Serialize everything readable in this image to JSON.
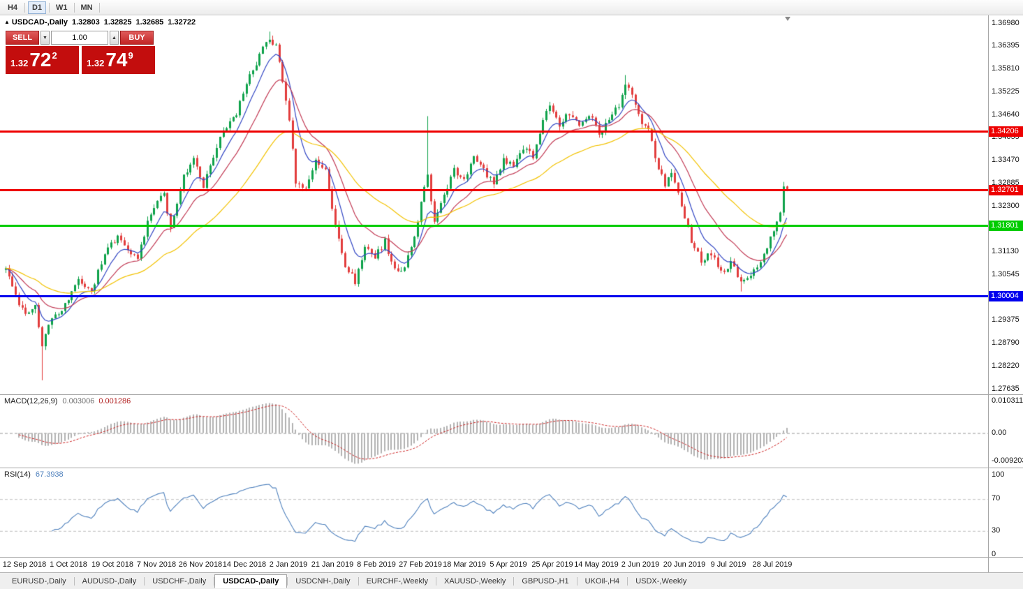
{
  "toolbar": {
    "timeframes": [
      {
        "label": "H4",
        "active": false
      },
      {
        "label": "D1",
        "active": true
      },
      {
        "label": "W1",
        "active": false
      },
      {
        "label": "MN",
        "active": false
      }
    ]
  },
  "chart": {
    "title": {
      "arrow": "▲",
      "symbol": "USDCAD-,Daily",
      "open": "1.32803",
      "high": "1.32825",
      "low": "1.32685",
      "close": "1.32722"
    },
    "trade_panel": {
      "sell_label": "SELL",
      "buy_label": "BUY",
      "volume": "1.00",
      "volume_down_icon": "▼",
      "volume_up_icon": "▲",
      "sell_price": {
        "prefix": "1.32",
        "big": "72",
        "sup": "2"
      },
      "buy_price": {
        "prefix": "1.32",
        "big": "74",
        "sup": "9"
      }
    },
    "hlines": [
      {
        "label": "1.34206",
        "price": 1.34206,
        "color": "#ee0000",
        "thickness": 3
      },
      {
        "label": "1.32701",
        "price": 1.32701,
        "color": "#ee0000",
        "thickness": 3
      },
      {
        "label": "1.31801",
        "price": 1.31801,
        "color": "#00cc00",
        "thickness": 3
      },
      {
        "label": "1.30004",
        "price": 1.30004,
        "color": "#0000ee",
        "thickness": 3
      }
    ],
    "y_axis_ticks": [
      "1.36980",
      "1.36395",
      "1.35810",
      "1.35225",
      "1.34640",
      "1.34055",
      "1.33470",
      "1.32885",
      "1.32300",
      "1.31715",
      "1.31130",
      "1.30545",
      "1.29960",
      "1.29375",
      "1.28790",
      "1.28220",
      "1.27635"
    ],
    "x_axis_dates": [
      "12 Sep 2018",
      "1 Oct 2018",
      "19 Oct 2018",
      "7 Nov 2018",
      "26 Nov 2018",
      "14 Dec 2018",
      "2 Jan 2019",
      "21 Jan 2019",
      "8 Feb 2019",
      "27 Feb 2019",
      "18 Mar 2019",
      "5 Apr 2019",
      "25 Apr 2019",
      "14 May 2019",
      "2 Jun 2019",
      "20 Jun 2019",
      "9 Jul 2019",
      "28 Jul 2019"
    ],
    "colors": {
      "up": "#0fa24b",
      "down": "#e23d3d",
      "ma_fast": "#3347c4",
      "ma_mid": "#c23b55",
      "ma_slow": "#f2c200"
    }
  },
  "macd_panel": {
    "name": "MACD(12,26,9)",
    "value_main": "0.003006",
    "value_signal": "0.001286",
    "axis": [
      "0.010311",
      "0.00",
      "-0.009203"
    ],
    "histogram_color": "#b3b3b3",
    "signal_color": "#cc2222"
  },
  "rsi_panel": {
    "name": "RSI(14)",
    "value": "67.3938",
    "axis": [
      "100",
      "70",
      "30",
      "0"
    ],
    "levels": [
      70,
      30
    ],
    "line_color": "#4f81bd"
  },
  "tabs": [
    {
      "label": "EURUSD-,Daily",
      "active": false
    },
    {
      "label": "AUDUSD-,Daily",
      "active": false
    },
    {
      "label": "USDCHF-,Daily",
      "active": false
    },
    {
      "label": "USDCAD-,Daily",
      "active": true
    },
    {
      "label": "USDCNH-,Daily",
      "active": false
    },
    {
      "label": "EURCHF-,Weekly",
      "active": false
    },
    {
      "label": "XAUUSD-,Weekly",
      "active": false
    },
    {
      "label": "GBPUSD-,H1",
      "active": false
    },
    {
      "label": "UKOil-,H4",
      "active": false
    },
    {
      "label": "USDX-,Weekly",
      "active": false
    }
  ],
  "chart_data": {
    "type": "candlestick",
    "symbol": "USDCAD",
    "timeframe": "Daily",
    "visible_range": {
      "first_date": "12 Sep 2018",
      "last_date": "28 Jul 2019",
      "price_min": 1.27635,
      "price_max": 1.3698
    },
    "last_candle": {
      "open": 1.32803,
      "high": 1.32825,
      "low": 1.32685,
      "close": 1.32722
    },
    "candle_count": 238,
    "close_waypoints": [
      [
        0,
        1.3065
      ],
      [
        3,
        1.3
      ],
      [
        6,
        1.295
      ],
      [
        9,
        1.2985
      ],
      [
        11,
        1.287
      ],
      [
        13,
        1.293
      ],
      [
        18,
        1.2975
      ],
      [
        22,
        1.304
      ],
      [
        26,
        1.301
      ],
      [
        30,
        1.311
      ],
      [
        34,
        1.315
      ],
      [
        38,
        1.311
      ],
      [
        40,
        1.3095
      ],
      [
        44,
        1.3215
      ],
      [
        48,
        1.326
      ],
      [
        50,
        1.3175
      ],
      [
        54,
        1.331
      ],
      [
        57,
        1.335
      ],
      [
        60,
        1.328
      ],
      [
        63,
        1.336
      ],
      [
        66,
        1.342
      ],
      [
        70,
        1.347
      ],
      [
        74,
        1.356
      ],
      [
        78,
        1.3635
      ],
      [
        80,
        1.3655
      ],
      [
        82,
        1.364
      ],
      [
        84,
        1.3545
      ],
      [
        86,
        1.345
      ],
      [
        88,
        1.329
      ],
      [
        91,
        1.327
      ],
      [
        94,
        1.3345
      ],
      [
        97,
        1.333
      ],
      [
        100,
        1.318
      ],
      [
        103,
        1.308
      ],
      [
        106,
        1.3035
      ],
      [
        109,
        1.313
      ],
      [
        112,
        1.31
      ],
      [
        115,
        1.314
      ],
      [
        118,
        1.3065
      ],
      [
        121,
        1.3075
      ],
      [
        124,
        1.315
      ],
      [
        126,
        1.324
      ],
      [
        128,
        1.331
      ],
      [
        130,
        1.319
      ],
      [
        133,
        1.326
      ],
      [
        136,
        1.332
      ],
      [
        139,
        1.33
      ],
      [
        142,
        1.335
      ],
      [
        145,
        1.332
      ],
      [
        148,
        1.329
      ],
      [
        151,
        1.335
      ],
      [
        154,
        1.333
      ],
      [
        157,
        1.338
      ],
      [
        160,
        1.336
      ],
      [
        163,
        1.345
      ],
      [
        165,
        1.349
      ],
      [
        168,
        1.344
      ],
      [
        171,
        1.347
      ],
      [
        174,
        1.343
      ],
      [
        177,
        1.3465
      ],
      [
        180,
        1.3415
      ],
      [
        183,
        1.345
      ],
      [
        186,
        1.349
      ],
      [
        188,
        1.354
      ],
      [
        190,
        1.351
      ],
      [
        192,
        1.346
      ],
      [
        195,
        1.342
      ],
      [
        198,
        1.333
      ],
      [
        200,
        1.328
      ],
      [
        202,
        1.332
      ],
      [
        205,
        1.323
      ],
      [
        208,
        1.314
      ],
      [
        211,
        1.309
      ],
      [
        214,
        1.311
      ],
      [
        217,
        1.306
      ],
      [
        220,
        1.3085
      ],
      [
        223,
        1.3035
      ],
      [
        226,
        1.306
      ],
      [
        229,
        1.309
      ],
      [
        231,
        1.313
      ],
      [
        233,
        1.317
      ],
      [
        235,
        1.322
      ],
      [
        236,
        1.328
      ],
      [
        237,
        1.32722
      ]
    ],
    "wick_spikes": [
      {
        "i": 11,
        "low": 1.2785
      },
      {
        "i": 80,
        "high": 1.3676
      },
      {
        "i": 128,
        "high": 1.346
      },
      {
        "i": 188,
        "high": 1.3565
      },
      {
        "i": 223,
        "low": 1.3012
      },
      {
        "i": 236,
        "high": 1.3292
      }
    ],
    "macd_current": [
      0.003006,
      0.001286
    ],
    "rsi_current": 67.3938
  }
}
